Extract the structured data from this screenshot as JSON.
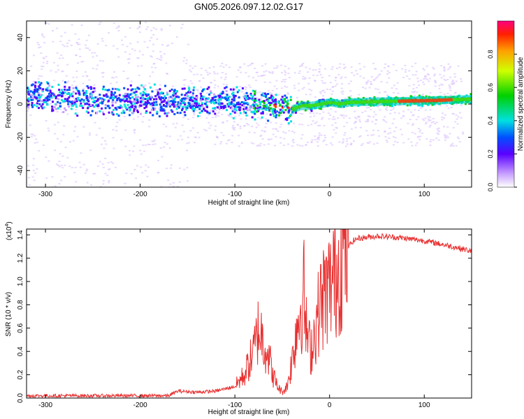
{
  "figure_title": "GN05.2026.097.12.02.G17",
  "chart_data": [
    {
      "type": "heatmap",
      "title": "GN05.2026.097.12.02.G17",
      "xlabel": "Height of straight line (km)",
      "ylabel": "Frequency (Hz)",
      "xlim": [
        -320,
        150
      ],
      "ylim": [
        -50,
        50
      ],
      "xticks": [
        -300,
        -200,
        -100,
        0,
        100
      ],
      "yticks": [
        -40,
        -20,
        0,
        20,
        40
      ],
      "ridge": {
        "x": [
          -320,
          -300,
          -250,
          -200,
          -150,
          -100,
          -80,
          -60,
          -50,
          -40,
          -30,
          -20,
          -10,
          0,
          10,
          20,
          50,
          100,
          150
        ],
        "freq": [
          4,
          5,
          2,
          2,
          2,
          1,
          0,
          -1,
          -2,
          -3,
          -1,
          -1,
          0,
          1,
          0,
          1,
          1.5,
          2,
          3
        ]
      },
      "colorbar": {
        "label": "Normalized spectral amplitude",
        "range": [
          0.0,
          1.0
        ],
        "ticks": [
          0.0,
          0.2,
          0.4,
          0.6,
          0.8
        ]
      }
    },
    {
      "type": "line",
      "xlabel": "Height of straight line (km)",
      "ylabel": "SNR (10 * v/v)",
      "y_scale_label": "(x10",
      "y_scale_exp": "4",
      "y_scale_close": ")",
      "xlim": [
        -320,
        150
      ],
      "ylim": [
        0,
        1.45
      ],
      "xticks": [
        -300,
        -200,
        -100,
        0,
        100
      ],
      "yticks": [
        0.0,
        0.2,
        0.4,
        0.6,
        0.8,
        1.0,
        1.2,
        1.4
      ],
      "color": "#e83030",
      "series": [
        {
          "name": "SNR",
          "x": [
            -320,
            -250,
            -170,
            -160,
            -140,
            -120,
            -100,
            -90,
            -80,
            -75,
            -70,
            -65,
            -60,
            -55,
            -50,
            -45,
            -40,
            -35,
            -30,
            -27,
            -25,
            -20,
            -15,
            -10,
            -5,
            0,
            5,
            10,
            15,
            20,
            25,
            30,
            40,
            50,
            70,
            100,
            130,
            150
          ],
          "y": [
            0.02,
            0.02,
            0.02,
            0.06,
            0.05,
            0.06,
            0.1,
            0.2,
            0.4,
            0.6,
            0.5,
            0.4,
            0.2,
            0.1,
            0.05,
            0.1,
            0.3,
            0.6,
            0.8,
            0.9,
            0.6,
            0.4,
            0.6,
            0.8,
            0.9,
            0.95,
            1.05,
            1.15,
            1.25,
            1.3,
            1.35,
            1.37,
            1.38,
            1.39,
            1.38,
            1.35,
            1.3,
            1.26
          ]
        }
      ]
    }
  ]
}
